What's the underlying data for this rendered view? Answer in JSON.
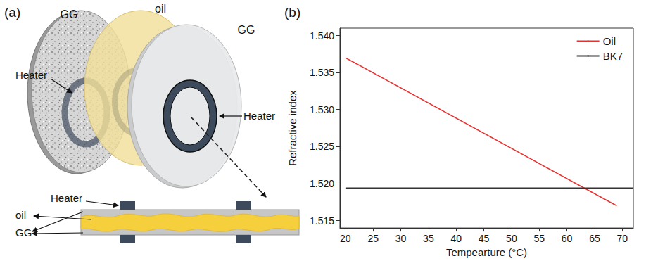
{
  "diagram": {
    "panel_label": "(a)",
    "labels": {
      "back_disk": "GG",
      "middle_disk": "oil",
      "front_disk": "GG",
      "back_heater": "Heater",
      "front_heater": "Heater",
      "section_heater": "Heater",
      "section_oil": "oil",
      "section_gg": "GG"
    }
  },
  "chart_data": {
    "type": "line",
    "panel_label": "(b)",
    "x_label": "Tempearture (°C)",
    "y_label": "Refractive index",
    "series": [
      {
        "name": "Oil",
        "color": "#e8312f",
        "x": [
          20,
          69
        ],
        "values": [
          1.537,
          1.517
        ]
      },
      {
        "name": "BK7",
        "color": "#333333",
        "x": [
          20,
          72
        ],
        "values": [
          1.5194,
          1.5194
        ]
      }
    ],
    "xlim": [
      19,
      72
    ],
    "xticks": [
      20,
      25,
      30,
      35,
      40,
      45,
      50,
      55,
      60,
      65,
      70
    ],
    "ylim": [
      1.514,
      1.541
    ],
    "yticks": [
      1.515,
      {
        "value": 1.52,
        "label": "1.520"
      },
      1.525,
      {
        "value": 1.53,
        "label": "1.530"
      },
      1.535,
      {
        "value": 1.54,
        "label": "1.540"
      }
    ],
    "grid": false,
    "legend": "top-right"
  }
}
